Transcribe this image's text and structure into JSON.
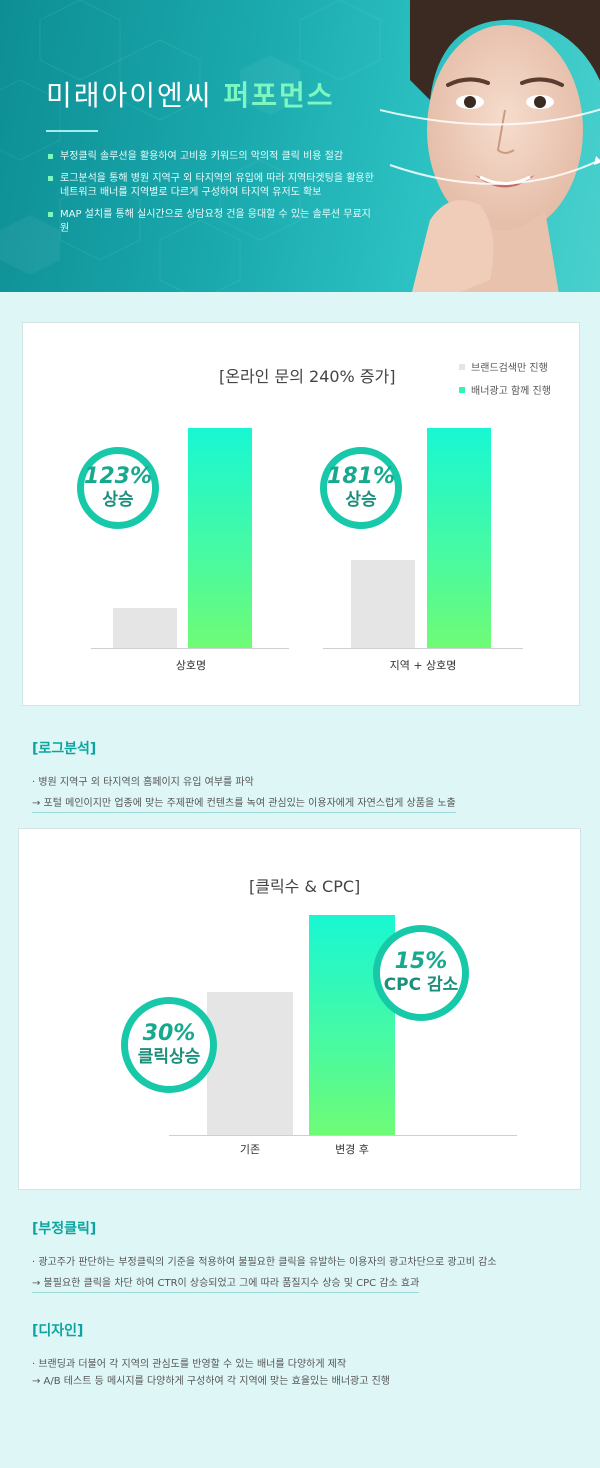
{
  "hero": {
    "title_plain": "미래아이엔씨 ",
    "title_highlight": "퍼포먼스",
    "bullets": [
      "부정클릭 솔루션을 활용하여 고비용 키워드의 악의적 클릭 비용 절감",
      "로그분석을 통해 병원 지역구 외 타지역의 유입에 따라 지역타겟팅을 활용한 네트워크 배너를 지역별로 다르게 구성하여 타지역 유저도 확보",
      "MAP 설치를 통해 실시간으로 상담요청 건을 응대할 수 있는 솔루션 무료지원"
    ],
    "colors": {
      "accent": "#7cf7c0",
      "bg": "#1aa9ad"
    }
  },
  "chart_data": [
    {
      "type": "bar",
      "title": "[온라인 문의 240% 증가]",
      "categories": [
        "상호명",
        "지역 + 상호명"
      ],
      "series": [
        {
          "name": "브랜드검색만 진행",
          "values": [
            18,
            40
          ],
          "color": "#e5e5e5"
        },
        {
          "name": "배너광고 함께 진행",
          "values": [
            100,
            100
          ],
          "color": "#2ef5b8"
        }
      ],
      "annotations": [
        {
          "value": "123%",
          "label": "상승"
        },
        {
          "value": "181%",
          "label": "상승"
        }
      ],
      "legend": "top-right",
      "grid": false
    },
    {
      "type": "bar",
      "title": "[클릭수 & CPC]",
      "categories": [
        "기존",
        "변경 후"
      ],
      "values": [
        65,
        100
      ],
      "annotations": [
        {
          "value": "30%",
          "label": "클릭상승"
        },
        {
          "value": "15%",
          "label": "CPC 감소"
        }
      ],
      "grid": false
    }
  ],
  "sections": [
    {
      "title": "[로그분석]",
      "lines": [
        "· 병원 지역구 외 타지역의 홈페이지 유입 여부를 파악",
        "→ 포털 메인이지만 업종에 맞는 주제판에 컨텐츠를 녹여 관심있는 이용자에게 자연스럽게 상품을 노출"
      ]
    },
    {
      "title": "[부정클릭]",
      "lines": [
        "· 광고주가 판단하는 부정클릭의 기준을 적용하여 불필요한 클릭을 유발하는 이용자의 광고차단으로 광고비 감소",
        "→ 불필요한 클릭을 차단 하여 CTR이 상승되었고 그에 따라 품질지수 상승 및 CPC 감소 효과"
      ]
    },
    {
      "title": "[디자인]",
      "lines": [
        "· 브랜딩과 더불어 각 지역의 관심도를 반영할 수 있는 배너를 다양하게 제작",
        "→ A/B 테스트 등 메시지를 다양하게 구성하여 각 지역에 맞는 효율있는 배너광고 진행"
      ]
    }
  ]
}
